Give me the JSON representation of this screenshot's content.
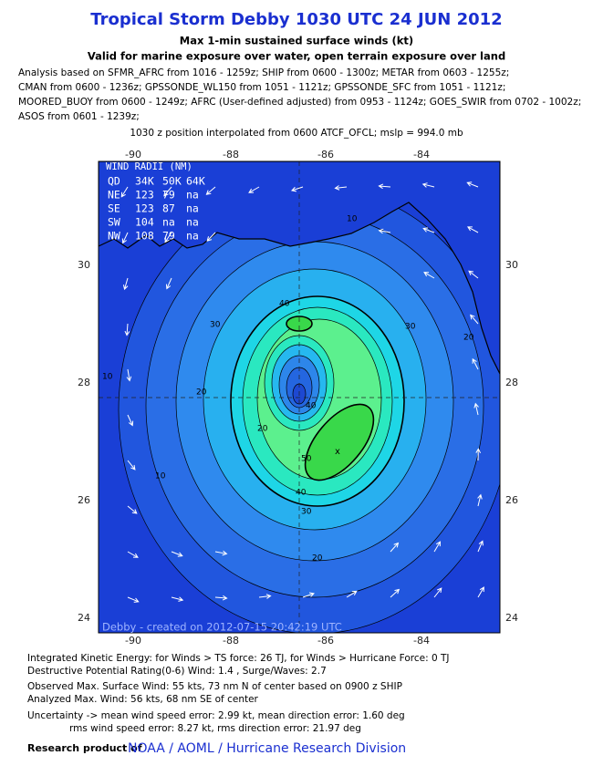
{
  "header": {
    "title": "Tropical Storm Debby 1030 UTC 24 JUN 2012",
    "subtitle": "Max 1-min sustained surface winds (kt)",
    "subtitle2": "Valid for marine exposure over water, open terrain exposure over land"
  },
  "analysis_notes": [
    "Analysis based on SFMR_AFRC from 1016 - 1259z; SHIP from 0600 - 1300z; METAR from 0603 - 1255z;",
    "CMAN from 0600 - 1236z; GPSSONDE_WL150 from 1051 - 1121z; GPSSONDE_SFC from 1051 - 1121z;",
    "MOORED_BUOY from 0600 - 1249z; AFRC (User-defined adjusted) from 0953 - 1124z; GOES_SWIR from 0702 - 1002z;",
    "ASOS from 0601 - 1239z;"
  ],
  "position_note": "1030 z position interpolated from 0600 ATCF_OFCL; mslp = 994.0 mb",
  "map": {
    "lon_labels": [
      "-90",
      "-88",
      "-86",
      "-84"
    ],
    "lat_labels": [
      "30",
      "28",
      "26",
      "24"
    ],
    "wind_radii": {
      "title": "WIND RADII (NM)",
      "header": [
        "QD",
        "34K",
        "50K",
        "64K"
      ],
      "rows": [
        [
          "NE",
          "123",
          "79",
          "na"
        ],
        [
          "SE",
          "123",
          "87",
          "na"
        ],
        [
          "SW",
          "104",
          "na",
          "na"
        ],
        [
          "NW",
          "108",
          "79",
          "na"
        ]
      ]
    },
    "contour_labels": [
      "10",
      "20",
      "30",
      "40",
      "30",
      "20",
      "20",
      "40",
      "50",
      "40",
      "30",
      "20",
      "10",
      "10"
    ],
    "credit": "Debby - created on 2012-07-15 20:42:19 UTC"
  },
  "footer": {
    "lines": [
      "Integrated Kinetic Energy: for Winds > TS force: 26 TJ, for Winds > Hurricane Force: 0 TJ",
      "Destructive Potential Rating(0-6)  Wind: 1.4 , Surge/Waves: 2.7",
      "Observed Max. Surface Wind: 55 kts, 73 nm N of center based on 0900 z SHIP",
      "Analyzed Max. Wind: 56 kts, 68 nm  SE of center",
      "Uncertainty -> mean wind speed error: 2.99 kt, mean direction error: 1.60 deg",
      "rms wind speed error: 8.27 kt, rms direction error: 21.97 deg"
    ],
    "research_label": "Research product of",
    "research_org": "NOAA / AOML / Hurricane Research Division"
  }
}
